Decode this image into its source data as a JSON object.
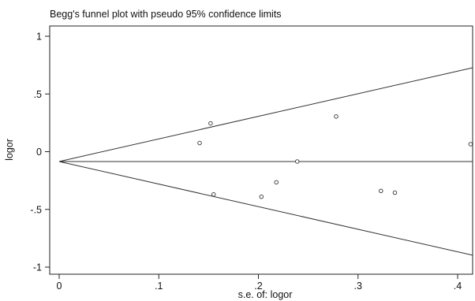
{
  "chart_data": {
    "type": "scatter",
    "title": "Begg's funnel plot with pseudo 95% confidence limits",
    "xlabel": "s.e. of: logor",
    "ylabel": "logor",
    "xlim": [
      0,
      0.415
    ],
    "ylim": [
      -1.1,
      1.1
    ],
    "xticks": [
      0,
      0.1,
      0.2,
      0.3,
      0.4
    ],
    "xtick_labels": [
      "0",
      ".1",
      ".2",
      ".3",
      ".4"
    ],
    "yticks": [
      1,
      0.5,
      0,
      -0.5,
      -1
    ],
    "ytick_labels": [
      "1",
      ".5",
      "0",
      "-.5",
      "-1"
    ],
    "grid": false,
    "pooled_estimate": -0.085,
    "confidence_limits": {
      "upper": {
        "x": [
          0,
          0.415
        ],
        "y": [
          -0.085,
          0.727
        ]
      },
      "lower": {
        "x": [
          0,
          0.415
        ],
        "y": [
          -0.085,
          -0.897
        ]
      }
    },
    "points": [
      {
        "x": 0.141,
        "y": 0.075
      },
      {
        "x": 0.152,
        "y": 0.245
      },
      {
        "x": 0.155,
        "y": -0.37
      },
      {
        "x": 0.203,
        "y": -0.39
      },
      {
        "x": 0.218,
        "y": -0.265
      },
      {
        "x": 0.239,
        "y": -0.085
      },
      {
        "x": 0.278,
        "y": 0.305
      },
      {
        "x": 0.323,
        "y": -0.34
      },
      {
        "x": 0.337,
        "y": -0.355
      },
      {
        "x": 0.413,
        "y": 0.065
      }
    ]
  }
}
